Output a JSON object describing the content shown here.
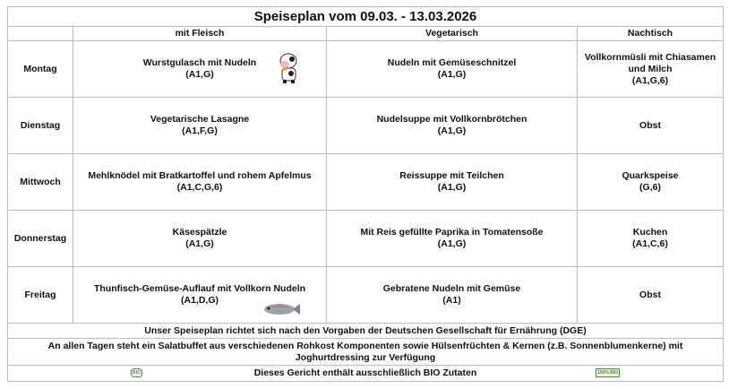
{
  "title": "Speiseplan vom 09.03. - 13.03.2026",
  "columns": [
    "",
    "mit Fleisch",
    "Vegetarisch",
    "Nachtisch"
  ],
  "days": [
    {
      "day": "Montag",
      "fleisch": "Wurstgulasch mit Nudeln",
      "fleisch_allergens": "(A1,G)",
      "fleisch_icon": "cow-icon",
      "veg": "Nudeln mit Gemüseschnitzel",
      "veg_allergens": "(A1,G)",
      "dessert": "Vollkornmüsli mit Chiasamen und Milch",
      "dessert_allergens": "(A1,G,6)"
    },
    {
      "day": "Dienstag",
      "fleisch": "Vegetarische Lasagne",
      "fleisch_allergens": "(A1,F,G)",
      "veg": "Nudelsuppe mit Vollkornbrötchen",
      "veg_allergens": "(A1,G)",
      "dessert": "Obst",
      "dessert_allergens": ""
    },
    {
      "day": "Mittwoch",
      "fleisch": "Mehlknödel mit Bratkartoffel und rohem Apfelmus",
      "fleisch_allergens": "(A1,C,G,6)",
      "veg": "Reissuppe mit Teilchen",
      "veg_allergens": "(A1,G)",
      "dessert": "Quarkspeise",
      "dessert_allergens": "(G,6)"
    },
    {
      "day": "Donnerstag",
      "fleisch": "Käsespätzle",
      "fleisch_allergens": "(A1,G)",
      "veg": "Mit Reis gefüllte Paprika in Tomatensoße",
      "veg_allergens": "(A1,G)",
      "dessert": "Kuchen",
      "dessert_allergens": "(A1,C,6)"
    },
    {
      "day": "Freitag",
      "fleisch": "Thunfisch-Gemüse-Auflauf mit Vollkorn Nudeln",
      "fleisch_allergens": "(A1,D,G)",
      "fleisch_icon": "fish-icon",
      "veg": "Gebratene Nudeln mit Gemüse",
      "veg_allergens": "(A1)",
      "dessert": "Obst",
      "dessert_allergens": ""
    }
  ],
  "footer": {
    "dge": "Unser Speiseplan richtet sich nach den Vorgaben der Deutschen Gesellschaft für Ernährung (DGE)",
    "salad": "An allen Tagen steht ein Salatbuffet aus verschiedenen Rohkost Komponenten sowie Hülsenfrüchten & Kernen (z.B. Sonnenblumenkerne) mit Joghurtdressing zur Verfügung",
    "bio": "Dieses Gericht enthält ausschließlich BIO Zutaten",
    "bio_logo_left": "BIO",
    "bio_logo_right": "100% BIO"
  },
  "colors": {
    "border": "#bdbdbd",
    "bio_green": "#4a8a3a"
  }
}
